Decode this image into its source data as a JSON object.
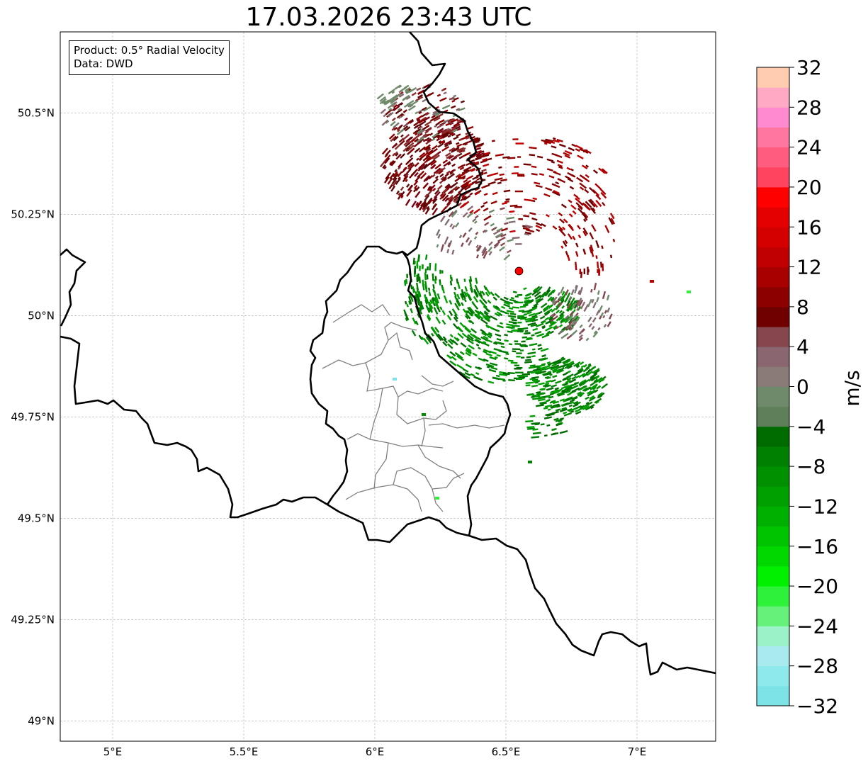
{
  "title": "17.03.2026 23:43 UTC",
  "info": {
    "product": "Product: 0.5° Radial Velocity",
    "data": "Data: DWD"
  },
  "map": {
    "lon_range": [
      4.8,
      7.3
    ],
    "lat_range": [
      48.95,
      50.7
    ],
    "lat_ticks": [
      {
        "value": 50.5,
        "label": "50.5°N"
      },
      {
        "value": 50.25,
        "label": "50.25°N"
      },
      {
        "value": 50.0,
        "label": "50°N"
      },
      {
        "value": 49.75,
        "label": "49.75°N"
      },
      {
        "value": 49.5,
        "label": "49.5°N"
      },
      {
        "value": 49.25,
        "label": "49.25°N"
      },
      {
        "value": 49.0,
        "label": "49°N"
      }
    ],
    "lon_ticks": [
      {
        "value": 5.0,
        "label": "5°E"
      },
      {
        "value": 5.5,
        "label": "5.5°E"
      },
      {
        "value": 6.0,
        "label": "6°E"
      },
      {
        "value": 6.5,
        "label": "6.5°E"
      },
      {
        "value": 7.0,
        "label": "7°E"
      }
    ],
    "radar_site": {
      "lon": 6.55,
      "lat": 50.11,
      "color": "#ff0000"
    },
    "grid": true
  },
  "colorbar": {
    "label": "m/s",
    "min": -32,
    "max": 32,
    "tick_values": [
      -32,
      -28,
      -24,
      -20,
      -16,
      -12,
      -8,
      -4,
      0,
      4,
      8,
      12,
      16,
      20,
      24,
      28,
      32
    ],
    "tick_labels": [
      "−32",
      "−28",
      "−24",
      "−20",
      "−16",
      "−12",
      "−8",
      "−4",
      "0",
      "4",
      "8",
      "12",
      "16",
      "20",
      "24",
      "28",
      "32"
    ],
    "colors": [
      "#7ee3e6",
      "#8ee9ec",
      "#a8eaee",
      "#9cf2c8",
      "#66f27a",
      "#2ef23a",
      "#00f000",
      "#00d800",
      "#00c400",
      "#00b000",
      "#00a000",
      "#009000",
      "#008000",
      "#006c00",
      "#5e8058",
      "#6e8a6a",
      "#8a7a78",
      "#8a6670",
      "#86464e",
      "#700000",
      "#8c0000",
      "#a80000",
      "#c00000",
      "#d40000",
      "#e40000",
      "#ff0000",
      "#ff4460",
      "#ff5c80",
      "#ff76a0",
      "#ff8ad0",
      "#ffaac4",
      "#ffccb0"
    ]
  }
}
